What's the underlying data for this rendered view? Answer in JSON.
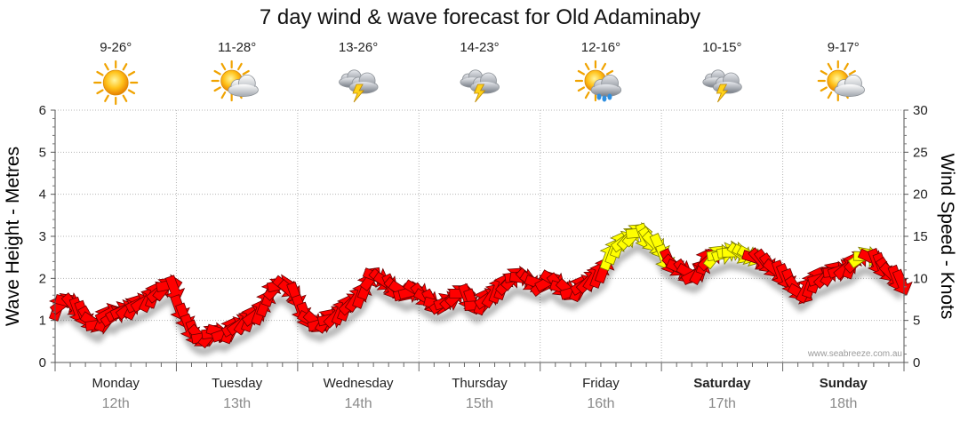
{
  "title": "7 day wind & wave forecast for Old Adaminaby",
  "watermark": "www.seabreeze.com.au",
  "chart_data": {
    "type": "line",
    "title": "7 day wind & wave forecast for Old Adaminaby",
    "ylabel": "Wave Height - Metres",
    "y2label": "Wind Speed - Knots",
    "ylim": [
      0,
      6
    ],
    "y2lim": [
      0,
      30
    ],
    "yticks": [
      "0",
      "1",
      "2",
      "3",
      "4",
      "5",
      "6"
    ],
    "y2ticks": [
      "0",
      "5",
      "10",
      "15",
      "20",
      "25",
      "30"
    ],
    "grid": true,
    "days": [
      {
        "name": "Monday",
        "date": "12th",
        "temp": "9-26°",
        "icon": "sun-icon",
        "bold": false
      },
      {
        "name": "Tuesday",
        "date": "13th",
        "temp": "11-28°",
        "icon": "sun-cloud-icon",
        "bold": false
      },
      {
        "name": "Wednesday",
        "date": "14th",
        "temp": "13-26°",
        "icon": "storm-icon",
        "bold": false
      },
      {
        "name": "Thursday",
        "date": "15th",
        "temp": "14-23°",
        "icon": "storm-icon",
        "bold": false
      },
      {
        "name": "Friday",
        "date": "16th",
        "temp": "12-16°",
        "icon": "sun-rain-icon",
        "bold": false
      },
      {
        "name": "Saturday",
        "date": "17th",
        "temp": "10-15°",
        "icon": "storm-icon",
        "bold": true
      },
      {
        "name": "Sunday",
        "date": "18th",
        "temp": "9-17°",
        "icon": "sun-cloud-icon",
        "bold": true
      }
    ],
    "wind_series": {
      "name": "Wind speed (knots), hourly from Monday 00:00",
      "strong_threshold_knots": 12.5,
      "values": [
        6.5,
        7,
        7.2,
        6.8,
        6.2,
        5.8,
        5.2,
        4.8,
        4.5,
        5.2,
        5.8,
        5.5,
        6,
        6.2,
        6.4,
        6.6,
        7,
        7.2,
        7.5,
        8,
        8.4,
        8.8,
        9.2,
        8.8,
        6.5,
        5.5,
        4.2,
        3.5,
        3.1,
        3,
        3.2,
        3.5,
        3.6,
        3.4,
        3.8,
        4.2,
        4.5,
        4.8,
        5.2,
        5.6,
        6,
        7,
        8.2,
        8.8,
        9.2,
        9,
        8.5,
        8,
        6.5,
        5.6,
        5,
        4.8,
        4.6,
        5,
        5.2,
        5.5,
        6,
        6.5,
        7,
        7.5,
        8,
        9,
        10,
        10.2,
        9.8,
        9.5,
        9,
        8.8,
        8.5,
        8.2,
        8.4,
        8.6,
        8,
        7.6,
        7.2,
        6.9,
        7,
        7.2,
        7.6,
        8,
        8.2,
        7.8,
        7.2,
        6.8,
        7.2,
        7.6,
        8,
        8.6,
        9,
        9.4,
        10,
        10.2,
        10,
        9.8,
        9.6,
        9.4,
        9.2,
        9.6,
        9.8,
        9.2,
        8.8,
        8.6,
        8.4,
        8.8,
        9.2,
        9.6,
        10,
        10.4,
        11,
        12.5,
        13.2,
        14,
        14.4,
        14.8,
        15.2,
        15.4,
        15,
        14.6,
        14.2,
        13.8,
        12.5,
        12,
        11.5,
        11.2,
        10.8,
        10.6,
        10.4,
        10.8,
        12,
        12.3,
        12.6,
        12.8,
        13,
        13.2,
        13.1,
        13,
        12.9,
        12.7,
        12.4,
        12.2,
        12,
        11.5,
        11,
        10.6,
        10.2,
        9.6,
        8.8,
        8.2,
        8.6,
        9.2,
        9.8,
        10,
        10.2,
        10.6,
        10.8,
        11,
        11.2,
        11.5,
        12,
        12.5,
        12.6,
        12.4,
        12,
        11.5,
        11,
        10.5,
        10,
        9.5
      ]
    }
  }
}
